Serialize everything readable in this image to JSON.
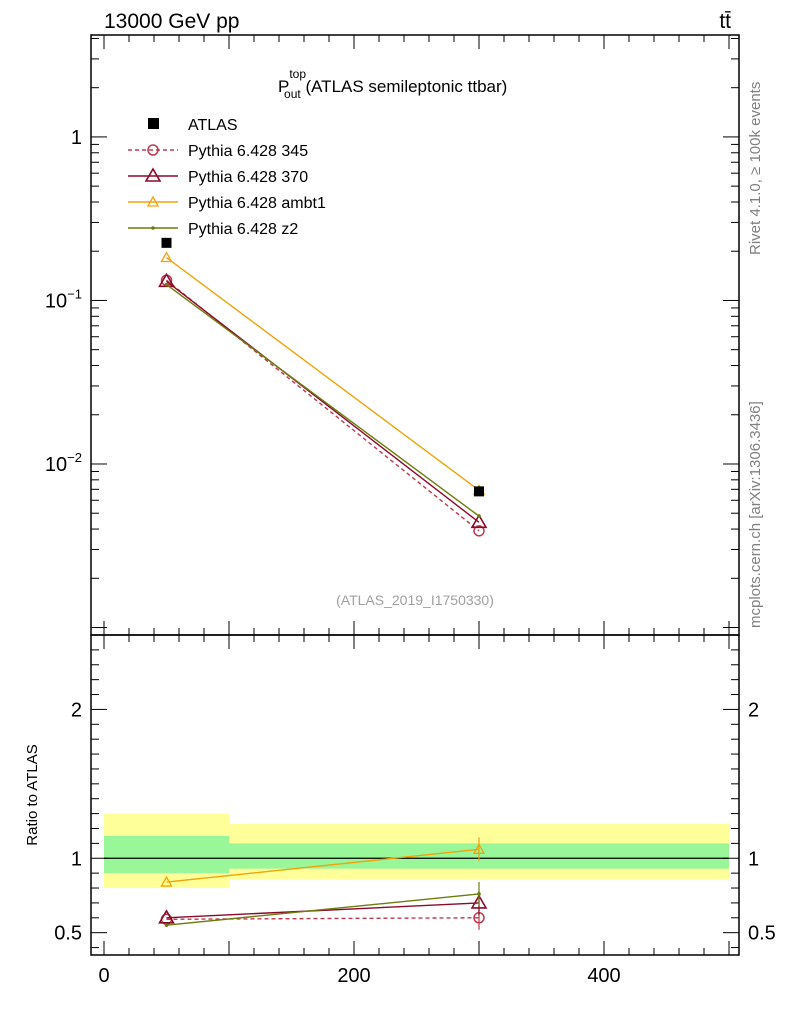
{
  "header": {
    "energy_label": "13000 GeV pp",
    "process_label": "tt̄"
  },
  "side": {
    "rivet_label": "Rivet 4.1.0, ≥ 100k events",
    "mcplots_label": "mcplots.cern.ch [arXiv:1306.3436]"
  },
  "chart_data": [
    {
      "type": "line",
      "panel": "main",
      "title_main": "P",
      "title_sup": "top",
      "title_sub": "out",
      "title_rest": " (ATLAS semileptonic ttbar)",
      "analysis_id": "(ATLAS_2019_I1750330)",
      "yscale": "log",
      "ylim": [
        0.0009,
        4.2
      ],
      "xlim": [
        -10,
        510
      ],
      "ytick_labels": [
        "1",
        "10^-1",
        "10^-2"
      ],
      "ytick_values": [
        1,
        0.1,
        0.01
      ],
      "x": [
        50,
        300
      ],
      "data": {
        "name": "ATLAS",
        "color": "#000000",
        "values": [
          0.225,
          0.0068
        ]
      },
      "series": [
        {
          "name": "Pythia 6.428 345",
          "color": "#bf3a4e",
          "marker": "circle",
          "dashed": true,
          "values": [
            0.133,
            0.0039
          ]
        },
        {
          "name": "Pythia 6.428 370",
          "color": "#8b0a2a",
          "marker": "triangle",
          "dashed": false,
          "values": [
            0.131,
            0.0044
          ]
        },
        {
          "name": "Pythia 6.428 ambt1",
          "color": "#f0a30a",
          "marker": "triangle-small",
          "dashed": false,
          "values": [
            0.183,
            0.0069
          ]
        },
        {
          "name": "Pythia 6.428 z2",
          "color": "#6b7d0c",
          "marker": "dot",
          "dashed": false,
          "values": [
            0.125,
            0.0048
          ]
        }
      ]
    },
    {
      "type": "line",
      "panel": "ratio",
      "ylabel": "Ratio to ATLAS",
      "ylim": [
        0.35,
        2.5
      ],
      "xlim": [
        -10,
        510
      ],
      "ytick_labels": [
        "2",
        "1",
        "0.5"
      ],
      "ytick_values": [
        2,
        1,
        0.5
      ],
      "xtick_labels": [
        "0",
        "200",
        "400"
      ],
      "xtick_values": [
        0,
        200,
        400
      ],
      "x": [
        50,
        300
      ],
      "bands": [
        {
          "x0": 0,
          "x1": 100,
          "yellow": [
            0.8,
            1.3
          ],
          "green": [
            0.9,
            1.15
          ]
        },
        {
          "x0": 100,
          "x1": 500,
          "yellow": [
            0.86,
            1.23
          ],
          "green": [
            0.93,
            1.1
          ]
        }
      ],
      "series": [
        {
          "name": "Pythia 6.428 345",
          "color": "#bf3a4e",
          "marker": "circle",
          "dashed": true,
          "values": [
            0.59,
            0.6
          ]
        },
        {
          "name": "Pythia 6.428 370",
          "color": "#8b0a2a",
          "marker": "triangle",
          "dashed": false,
          "values": [
            0.6,
            0.7
          ]
        },
        {
          "name": "Pythia 6.428 ambt1",
          "color": "#f0a30a",
          "marker": "triangle-small",
          "dashed": false,
          "values": [
            0.84,
            1.06
          ]
        },
        {
          "name": "Pythia 6.428 z2",
          "color": "#6b7d0c",
          "marker": "dot",
          "dashed": false,
          "values": [
            0.55,
            0.76
          ]
        }
      ]
    }
  ]
}
